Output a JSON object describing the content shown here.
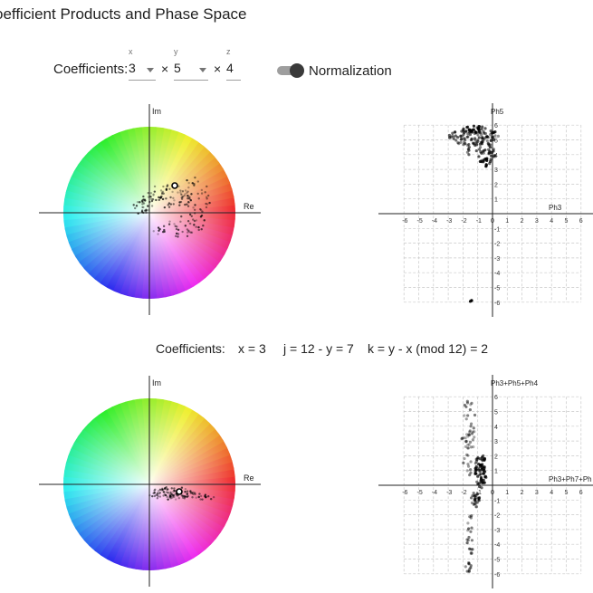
{
  "title": "oefficient Products and Phase Space",
  "coefficients_label": "Coefficients:",
  "selectors": [
    {
      "caption": "x",
      "value": "3"
    },
    {
      "caption": "y",
      "value": "5"
    },
    {
      "caption": "z",
      "value": "4"
    }
  ],
  "times_symbol": "×",
  "normalization": {
    "label": "Normalization",
    "on": true
  },
  "info": {
    "label": "Coefficients:",
    "x_text": "x = 3",
    "j_text": "j = 12 - y = 7",
    "k_text": "k = y - x (mod 12) = 2"
  },
  "wheel_axes": {
    "re": "Re",
    "im": "Im"
  },
  "phase_plots": [
    {
      "ylabel": "Ph5",
      "xlabel": "Ph3",
      "xticks": [
        -6,
        -5,
        -4,
        -3,
        -2,
        -1,
        0,
        1,
        2,
        3,
        4,
        5,
        6
      ],
      "yticks": [
        -6,
        -5,
        -4,
        -3,
        -2,
        -1,
        1,
        2,
        3,
        4,
        5,
        6
      ]
    },
    {
      "ylabel": "Ph3+Ph5+Ph4",
      "xlabel": "Ph3+Ph7+Ph",
      "xticks": [
        -6,
        -5,
        -4,
        -3,
        -2,
        -1,
        0,
        1,
        2,
        3,
        4,
        5,
        6
      ],
      "yticks": [
        -6,
        -5,
        -4,
        -3,
        -2,
        -1,
        1,
        2,
        3,
        4,
        5,
        6
      ]
    }
  ],
  "colors": {
    "text": "#212121",
    "muted": "#757575",
    "grid": "#cccccc",
    "points": "#000000"
  }
}
